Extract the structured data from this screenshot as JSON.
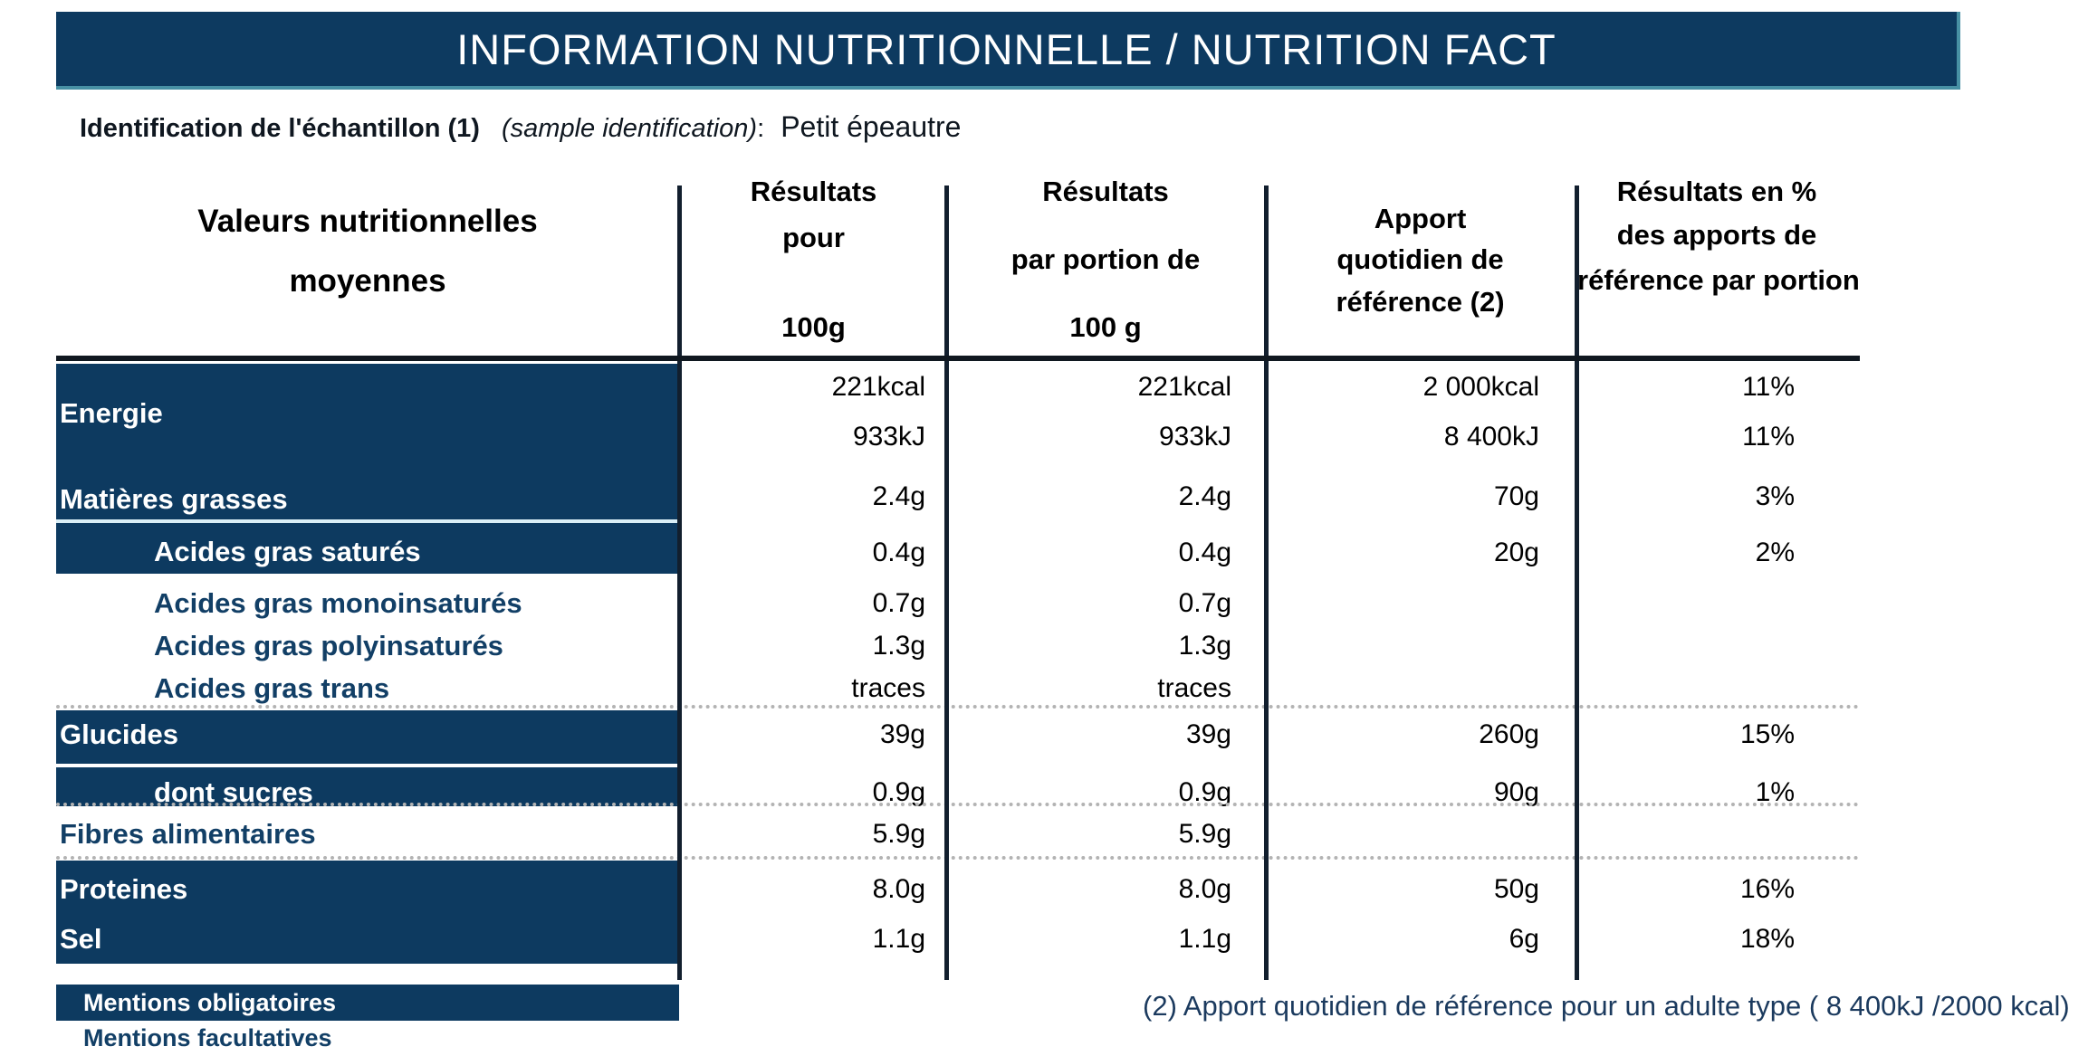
{
  "title": "INFORMATION NUTRITIONNELLE / NUTRITION FACT",
  "sample": {
    "label_fr": "Identification de l'échantillon (1)",
    "label_en": "(sample identification)",
    "colon": ":",
    "value": "Petit épeautre"
  },
  "header": {
    "col1": {
      "lines": [
        "Valeurs nutritionnelles",
        "moyennes"
      ]
    },
    "col2": {
      "lines": [
        "Résultats",
        "pour",
        "100g"
      ]
    },
    "col3": {
      "lines": [
        "Résultats",
        "par portion de",
        "100 g"
      ]
    },
    "col4": {
      "lines": [
        "Apport",
        "quotidien de",
        "référence (2)"
      ]
    },
    "col5": {
      "lines": [
        "Résultats en %",
        "des apports de",
        "référence par portion"
      ]
    }
  },
  "table": {
    "rows": [
      {
        "label": "Energie",
        "values": [
          "221kcal",
          "221kcal",
          "2 000kcal",
          "11%"
        ]
      },
      {
        "label": "",
        "values": [
          "933kJ",
          "933kJ",
          "8 400kJ",
          "11%"
        ]
      },
      {
        "label": "Matières grasses",
        "values": [
          "2.4g",
          "2.4g",
          "70g",
          "3%"
        ]
      },
      {
        "label": "Acides gras saturés",
        "values": [
          "0.4g",
          "0.4g",
          "20g",
          "2%"
        ]
      },
      {
        "label": "Acides gras monoinsaturés",
        "values": [
          "0.7g",
          "0.7g",
          "",
          ""
        ]
      },
      {
        "label": "Acides gras polyinsaturés",
        "values": [
          "1.3g",
          "1.3g",
          "",
          ""
        ]
      },
      {
        "label": "Acides gras trans",
        "values": [
          "traces",
          "traces",
          "",
          ""
        ]
      },
      {
        "label": "Glucides",
        "values": [
          "39g",
          "39g",
          "260g",
          "15%"
        ]
      },
      {
        "label": "dont sucres",
        "values": [
          "0.9g",
          "0.9g",
          "90g",
          "1%"
        ]
      },
      {
        "label": "Fibres alimentaires",
        "values": [
          "5.9g",
          "5.9g",
          "",
          ""
        ]
      },
      {
        "label": "Proteines",
        "values": [
          "8.0g",
          "8.0g",
          "50g",
          "16%"
        ]
      },
      {
        "label": "Sel",
        "values": [
          "1.1g",
          "1.1g",
          "6g",
          "18%"
        ]
      }
    ]
  },
  "footer": {
    "obligatoires": "Mentions obligatoires",
    "facultatives": "Mentions facultatives",
    "note": "(2) Apport quotidien de référence pour un adulte type ( 8 400kJ /2000 kcal)"
  },
  "colors": {
    "navy": "#0d3a60",
    "teal_border": "#4790a4",
    "navy_text": "#123f66",
    "cyan_separator": "#d9eef6",
    "dotted_rule": "#b3b3b3",
    "note_text": "#1b3a5e"
  }
}
